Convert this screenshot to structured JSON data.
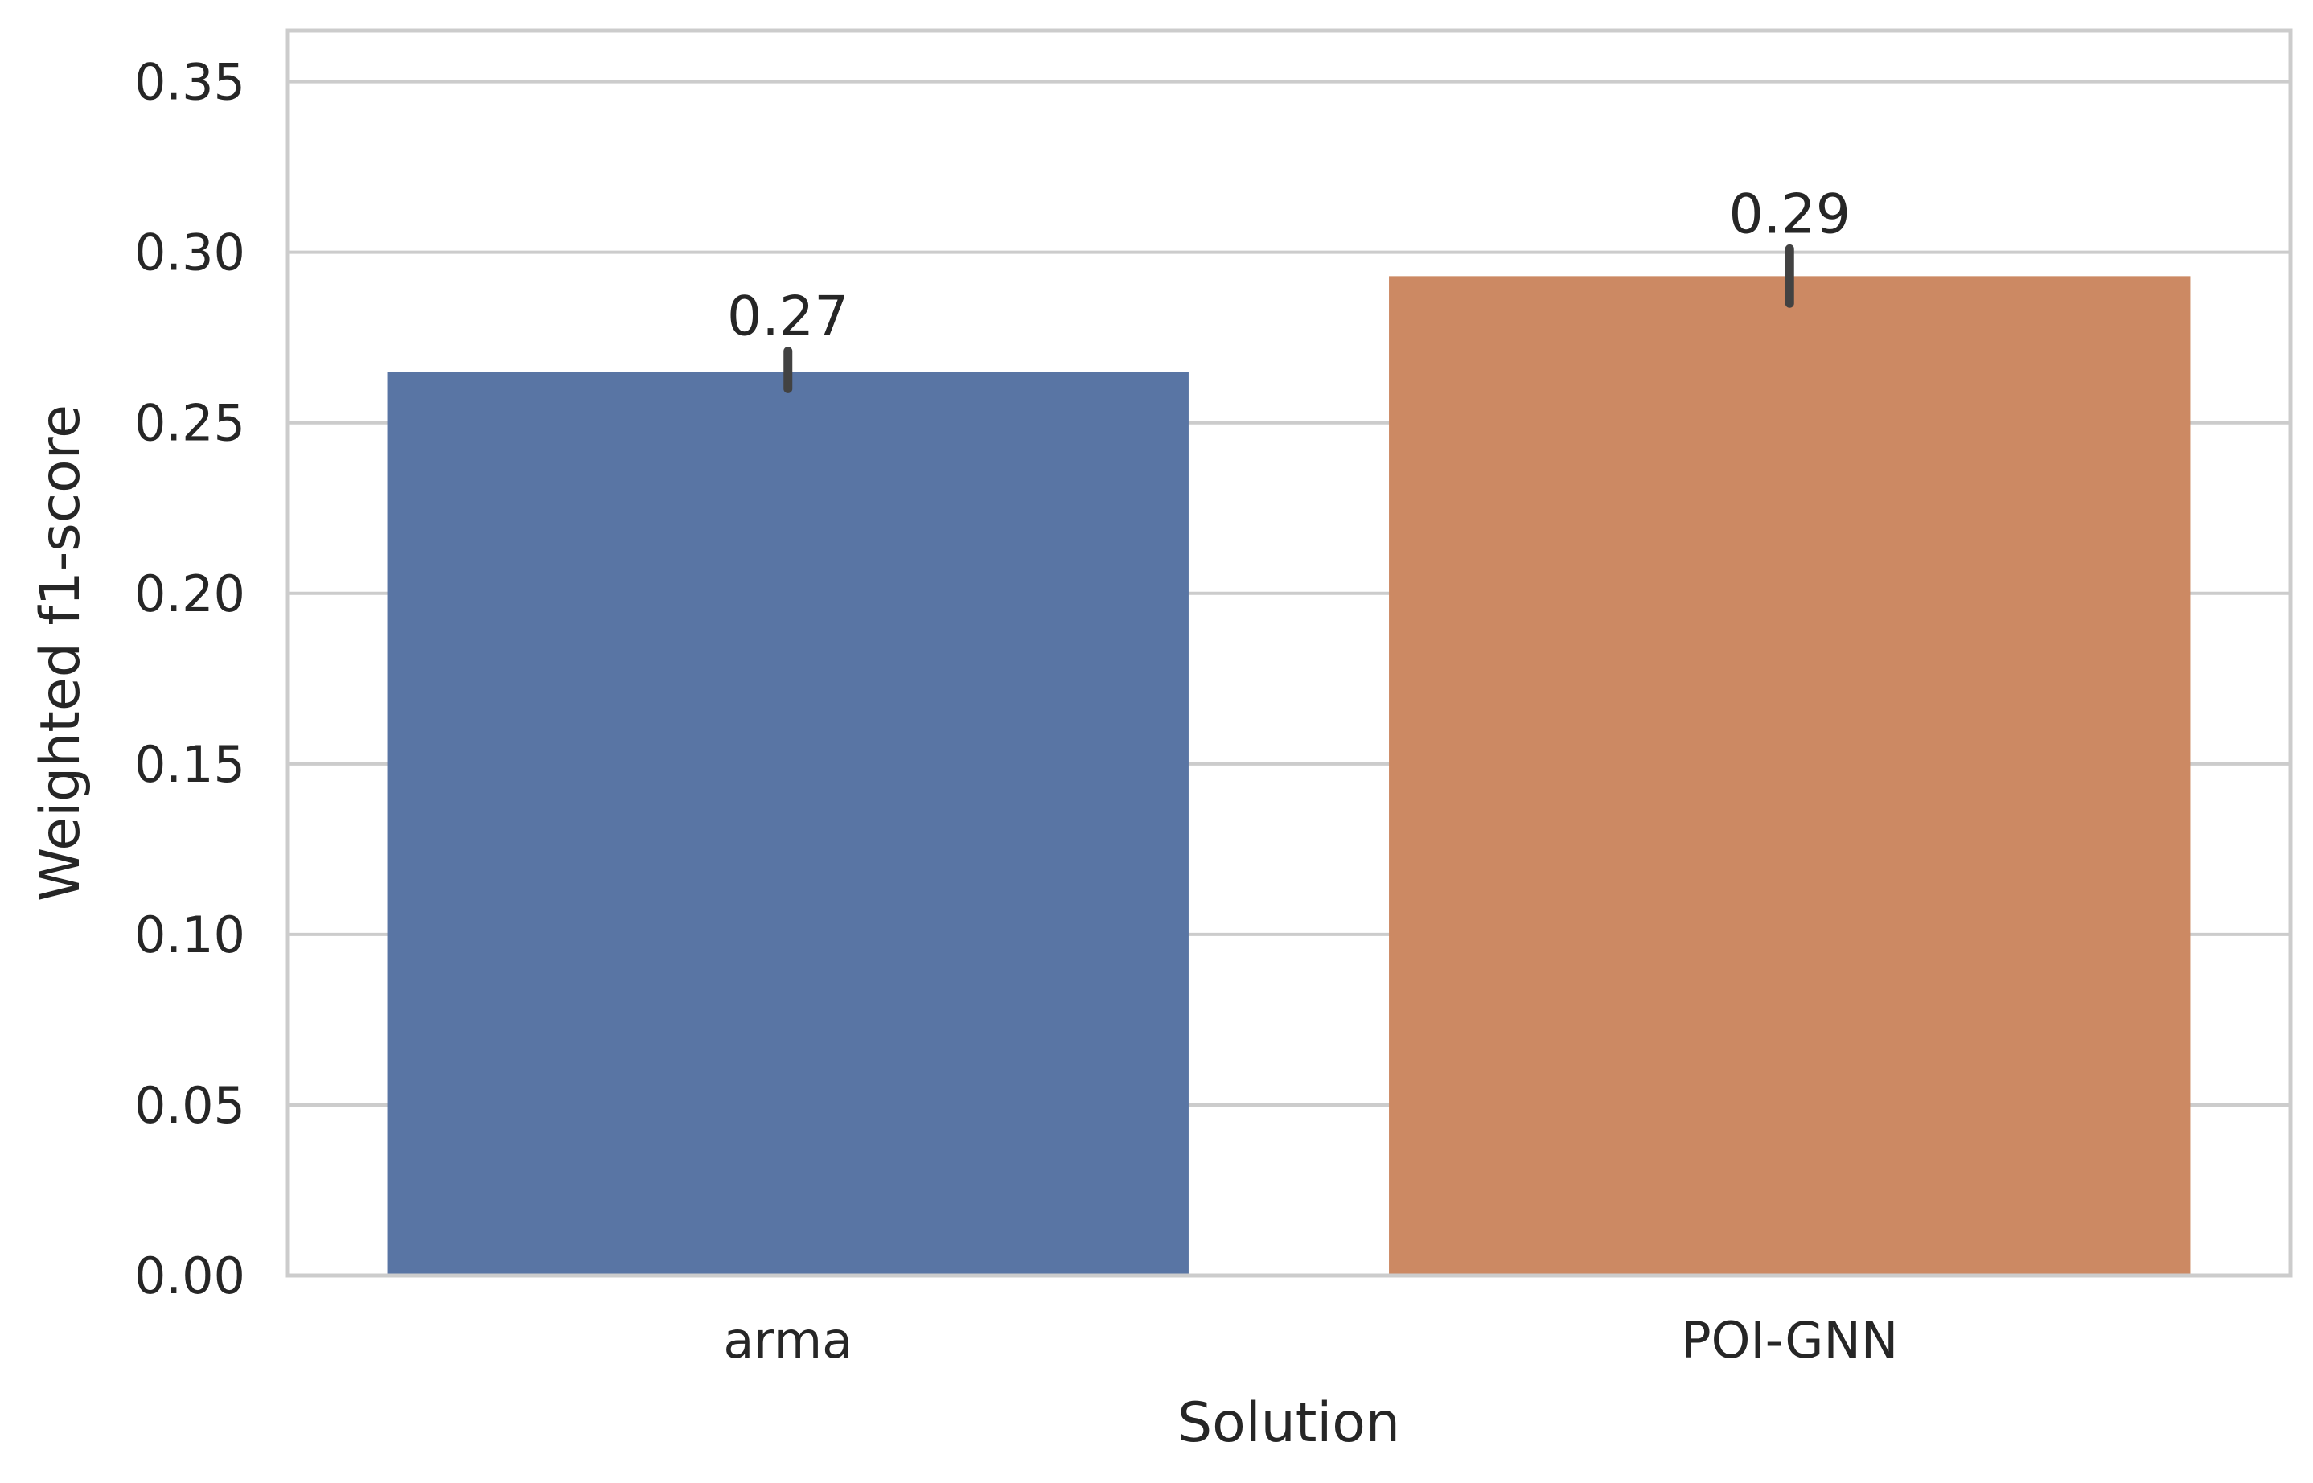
{
  "chart_data": {
    "type": "bar",
    "title": "",
    "xlabel": "Solution",
    "ylabel": "Weighted f1-score",
    "categories": [
      "arma",
      "POI-GNN"
    ],
    "values": [
      0.265,
      0.293
    ],
    "value_labels": [
      "0.27",
      "0.29"
    ],
    "error_bars": [
      [
        0.26,
        0.271
      ],
      [
        0.285,
        0.301
      ]
    ],
    "bar_colors": [
      "#5975a4",
      "#cc8963"
    ],
    "ylim": [
      0,
      0.365
    ],
    "yticks": [
      0.0,
      0.05,
      0.1,
      0.15,
      0.2,
      0.25,
      0.3,
      0.35
    ],
    "ytick_labels": [
      "0.00",
      "0.05",
      "0.10",
      "0.15",
      "0.20",
      "0.25",
      "0.30",
      "0.35"
    ],
    "grid": "horizontal",
    "legend": "none"
  }
}
